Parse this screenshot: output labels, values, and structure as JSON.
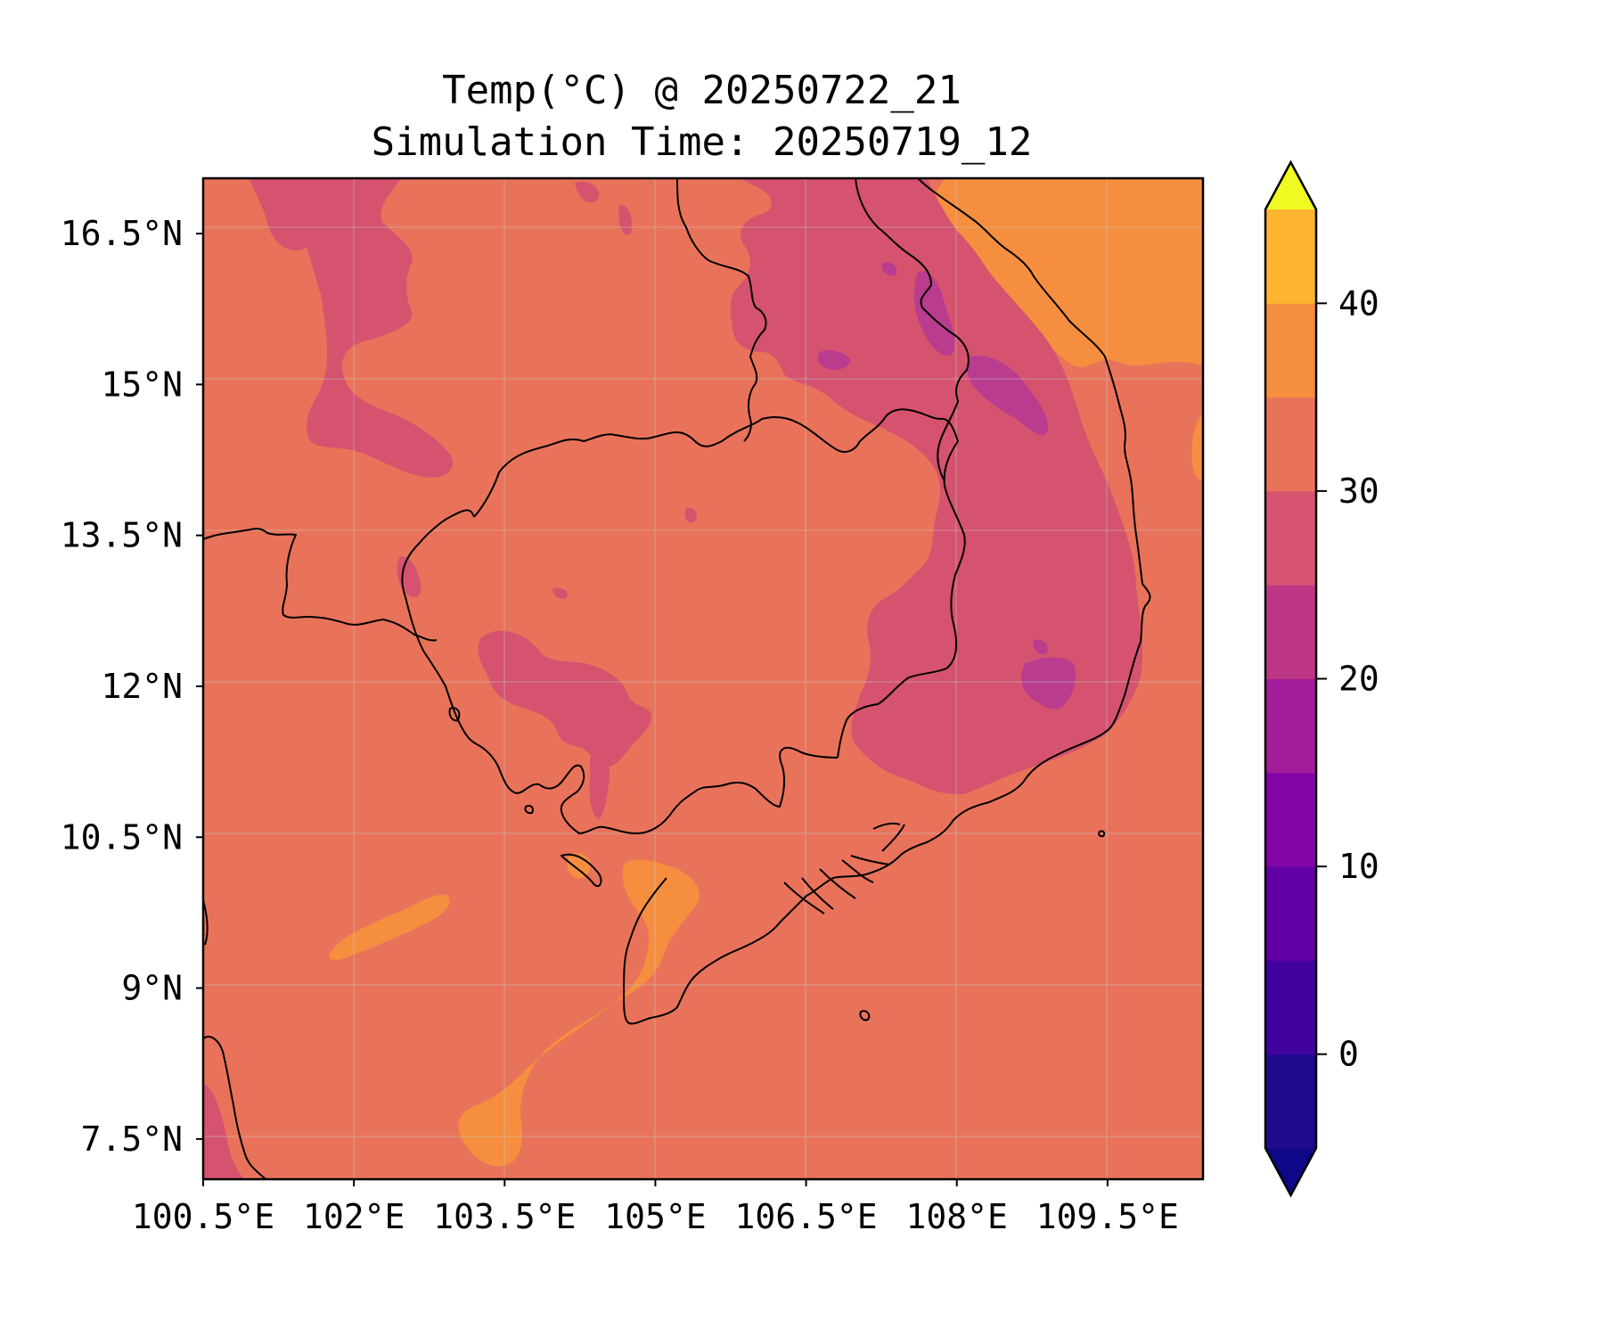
{
  "title": {
    "line1": "Temp(°C) @ 20250722_21",
    "line2": "Simulation Time: 20250719_12"
  },
  "map": {
    "x_ticks": [
      "100.5°E",
      "102°E",
      "103.5°E",
      "105°E",
      "106.5°E",
      "108°E",
      "109.5°E"
    ],
    "x_tick_values": [
      100.5,
      102,
      103.5,
      105,
      106.5,
      108,
      109.5
    ],
    "y_ticks": [
      "16.5°N",
      "15°N",
      "13.5°N",
      "12°N",
      "10.5°N",
      "9°N",
      "7.5°N"
    ],
    "y_tick_values": [
      16.5,
      15,
      13.5,
      12,
      10.5,
      9,
      7.5
    ],
    "lon_range": [
      100.5,
      110.45
    ],
    "lat_range": [
      7.1,
      17.05
    ],
    "grid": true,
    "colors": {
      "band_20_25": "#d5536f",
      "band_25_30": "#e9735a",
      "band_30_35": "#f58f3f",
      "band_15_20": "#b93c8e"
    }
  },
  "colorbar": {
    "ticks": [
      "0",
      "10",
      "20",
      "30",
      "40"
    ],
    "tick_values": [
      0,
      10,
      20,
      30,
      40
    ],
    "levels": [
      -5,
      0,
      5,
      10,
      15,
      20,
      25,
      30,
      35,
      40,
      45
    ],
    "colors": [
      "#1f0a8b",
      "#41039d",
      "#6200a7",
      "#8405a7",
      "#a21d9a",
      "#bd3786",
      "#d5536f",
      "#e9735a",
      "#f58f3f",
      "#fdb42e",
      "#f0e227"
    ],
    "under_color": "#0d0887",
    "over_color": "#f0f921",
    "extend": "both"
  }
}
